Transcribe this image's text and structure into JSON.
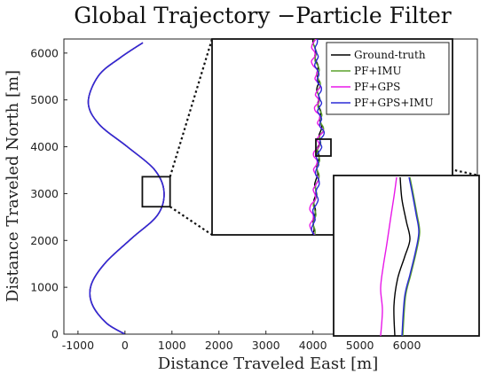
{
  "chart_data": {
    "type": "line",
    "title": "Global Trajectory −Particle Filter",
    "xlabel": "Distance Traveled East [m]",
    "ylabel": "Distance Traveled North [m]",
    "xlim": [
      -1300,
      7500
    ],
    "ylim": [
      0,
      6300
    ],
    "xticks": [
      -1000,
      0,
      1000,
      2000,
      3000,
      4000,
      5000,
      6000
    ],
    "yticks": [
      0,
      1000,
      2000,
      3000,
      4000,
      5000,
      6000
    ],
    "xtick_labels": [
      "-1000",
      "0",
      "1000",
      "2000",
      "3000",
      "4000",
      "5000",
      "6000"
    ],
    "ytick_labels": [
      "0",
      "1000",
      "2000",
      "3000",
      "4000",
      "5000",
      "6000"
    ],
    "grid": false,
    "legend_position": "top-right",
    "series": [
      {
        "name": "Ground-truth",
        "color": "#000000",
        "x": [
          0,
          -400,
          -700,
          -720,
          -420,
          150,
          700,
          830,
          620,
          50,
          -550,
          -780,
          -560,
          -100,
          380
        ],
        "y": [
          0,
          240,
          640,
          1050,
          1520,
          2050,
          2550,
          3050,
          3520,
          4000,
          4480,
          4950,
          5520,
          5900,
          6220
        ]
      },
      {
        "name": "PF+IMU",
        "color": "#5aa02c",
        "x": [
          0,
          -400,
          -700,
          -720,
          -420,
          150,
          700,
          830,
          620,
          50,
          -550,
          -780,
          -560,
          -100,
          380
        ],
        "y": [
          0,
          240,
          640,
          1050,
          1520,
          2050,
          2550,
          3050,
          3520,
          4000,
          4480,
          4950,
          5520,
          5900,
          6220
        ]
      },
      {
        "name": "PF+GPS",
        "color": "#e818e8",
        "x": [
          0,
          -400,
          -700,
          -720,
          -420,
          150,
          700,
          830,
          620,
          50,
          -550,
          -780,
          -560,
          -100,
          380
        ],
        "y": [
          0,
          240,
          640,
          1050,
          1520,
          2050,
          2550,
          3050,
          3520,
          4000,
          4480,
          4950,
          5520,
          5900,
          6220
        ]
      },
      {
        "name": "PF+GPS+IMU",
        "color": "#2b2bd6",
        "x": [
          0,
          -400,
          -700,
          -720,
          -420,
          150,
          700,
          830,
          620,
          50,
          -550,
          -780,
          -560,
          -100,
          380
        ],
        "y": [
          0,
          240,
          640,
          1050,
          1520,
          2050,
          2550,
          3050,
          3520,
          4000,
          4480,
          4950,
          5520,
          5900,
          6220
        ]
      }
    ],
    "zoom_region": {
      "x": [
        370,
        960
      ],
      "y": [
        2720,
        3360
      ]
    },
    "zoom_region_2": {
      "x": [
        3950,
        4250
      ],
      "y": [
        3820,
        4170
      ]
    }
  }
}
